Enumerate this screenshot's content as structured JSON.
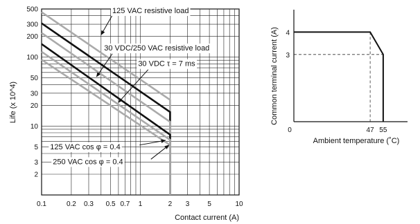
{
  "chart_data": [
    {
      "type": "line",
      "xlabel": "Contact current (A)",
      "ylabel": "Life (x 10^4)",
      "x_scale": "log",
      "y_scale": "log",
      "xlim": [
        0.1,
        10
      ],
      "ylim": [
        1,
        500
      ],
      "x_ticks": [
        {
          "v": 0.1,
          "label": "0.1"
        },
        {
          "v": 0.2,
          "label": "0.2"
        },
        {
          "v": 0.3,
          "label": "0.3"
        },
        {
          "v": 0.5,
          "label": "0.5"
        },
        {
          "v": 0.7,
          "label": "0.7"
        },
        {
          "v": 1,
          "label": "1"
        },
        {
          "v": 2,
          "label": "2"
        },
        {
          "v": 3,
          "label": "3"
        },
        {
          "v": 5,
          "label": "5"
        },
        {
          "v": 10,
          "label": "10"
        }
      ],
      "y_ticks": [
        {
          "v": 2,
          "label": "2"
        },
        {
          "v": 3,
          "label": "3"
        },
        {
          "v": 5,
          "label": "5"
        },
        {
          "v": 10,
          "label": "10"
        },
        {
          "v": 20,
          "label": "20"
        },
        {
          "v": 30,
          "label": "30"
        },
        {
          "v": 50,
          "label": "50"
        },
        {
          "v": 100,
          "label": "100"
        },
        {
          "v": 200,
          "label": "200"
        },
        {
          "v": 300,
          "label": "300"
        },
        {
          "v": 500,
          "label": "500"
        }
      ],
      "x_grid": [
        0.2,
        0.3,
        0.4,
        0.5,
        0.6,
        0.7,
        0.8,
        0.9,
        1,
        2,
        3,
        4,
        5,
        6,
        7,
        8,
        9
      ],
      "y_grid": [
        2,
        3,
        4,
        5,
        6,
        7,
        8,
        9,
        10,
        20,
        30,
        40,
        50,
        60,
        70,
        80,
        90,
        100,
        200,
        300,
        400
      ],
      "grid": true,
      "series": [
        {
          "key": "gray1",
          "color": "#aaaaaa",
          "points": [
            [
              0.1,
              450
            ],
            [
              2,
              24
            ],
            [
              2,
              1
            ]
          ]
        },
        {
          "key": "black1",
          "color": "#111111",
          "points": [
            [
              0.1,
              310
            ],
            [
              2,
              16
            ],
            [
              2,
              1
            ]
          ]
        },
        {
          "key": "gray2",
          "color": "#aaaaaa",
          "points": [
            [
              0.1,
              225
            ],
            [
              2,
              11.5
            ],
            [
              2,
              1
            ]
          ]
        },
        {
          "key": "black2",
          "color": "#111111",
          "points": [
            [
              0.1,
              155
            ],
            [
              2,
              7.5
            ],
            [
              2,
              1
            ]
          ]
        },
        {
          "key": "gray3",
          "color": "#aaaaaa",
          "points": [
            [
              0.1,
              120
            ],
            [
              2,
              6.3
            ],
            [
              2,
              1
            ]
          ]
        },
        {
          "key": "gray4",
          "color": "#aaaaaa",
          "points": [
            [
              0.1,
              92
            ],
            [
              2,
              5.3
            ],
            [
              2,
              1
            ]
          ]
        }
      ],
      "annotations": [
        {
          "key": "a1",
          "text": "125 VAC resistive load",
          "at": [
            0.52,
            435
          ],
          "arrow_from": [
            0.52,
            405
          ],
          "arrow_to": [
            0.4,
            210
          ]
        },
        {
          "key": "a2",
          "text": "30 VDC/250 VAC resistive load",
          "at": [
            0.43,
            125
          ],
          "arrow_from": [
            0.52,
            112
          ],
          "arrow_to": [
            0.36,
            52
          ]
        },
        {
          "key": "a3",
          "text": "30 VDC  τ = 7 ms",
          "at": [
            0.95,
            74
          ],
          "arrow_from": [
            1.2,
            66
          ],
          "arrow_to": [
            0.6,
            22
          ]
        },
        {
          "key": "a4",
          "text": "125 VAC cos φ = 0.4",
          "at": [
            0.122,
            4.6
          ],
          "arrow_from": [
            0.98,
            5.3
          ],
          "arrow_to": [
            1.8,
            6.2
          ]
        },
        {
          "key": "a5",
          "text": "250 VAC cos φ = 0.4",
          "at": [
            0.13,
            2.8
          ],
          "arrow_from": [
            1.28,
            3.3
          ],
          "arrow_to": [
            1.95,
            5.3
          ]
        }
      ]
    },
    {
      "type": "line",
      "xlabel": "Ambient temperature (˚C)",
      "ylabel": "Common terminal current (A)",
      "xlim": [
        0,
        70
      ],
      "ylim": [
        0,
        5
      ],
      "x_ticks": [
        {
          "v": 0,
          "label": "0"
        },
        {
          "v": 47,
          "label": "47"
        },
        {
          "v": 55,
          "label": "55"
        }
      ],
      "y_ticks": [
        {
          "v": 3,
          "label": "3"
        },
        {
          "v": 4,
          "label": "4"
        }
      ],
      "grid": false,
      "series": [
        {
          "key": "derating",
          "color": "#111111",
          "points": [
            [
              0,
              4
            ],
            [
              47,
              4
            ],
            [
              55,
              3
            ],
            [
              55,
              0
            ]
          ]
        }
      ],
      "guides": [
        {
          "from": [
            0,
            3
          ],
          "to": [
            55,
            3
          ]
        },
        {
          "from": [
            47,
            4
          ],
          "to": [
            47,
            0
          ]
        }
      ]
    }
  ]
}
